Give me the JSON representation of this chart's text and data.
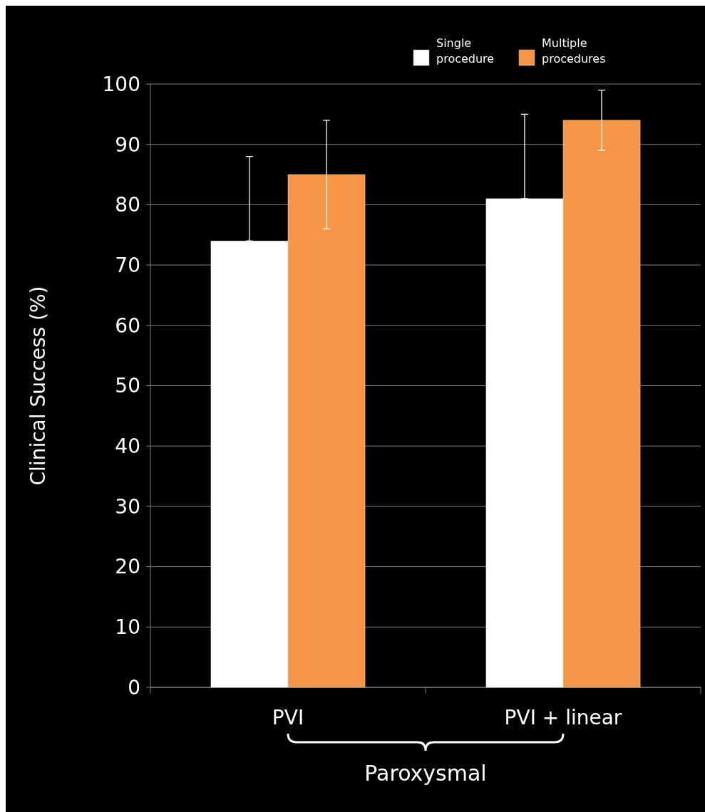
{
  "chart_data": {
    "type": "bar",
    "ylabel": "Clinical Success (%)",
    "categories": [
      "PVI",
      "PVI + linear"
    ],
    "series": [
      {
        "name": "Single procedure",
        "color": "#ffffff",
        "values": [
          74,
          81
        ],
        "errors": [
          [
            74,
            88
          ],
          [
            81,
            95
          ]
        ]
      },
      {
        "name": "Multiple procedures",
        "color": "#f79646",
        "values": [
          85,
          94
        ],
        "errors": [
          9,
          5
        ]
      }
    ],
    "ylim": [
      0,
      100
    ],
    "yticks": [
      0,
      10,
      20,
      30,
      40,
      50,
      60,
      70,
      80,
      90,
      100
    ],
    "grid": "y",
    "legend": "top right",
    "annotations": [
      "Paroxysmal"
    ]
  }
}
